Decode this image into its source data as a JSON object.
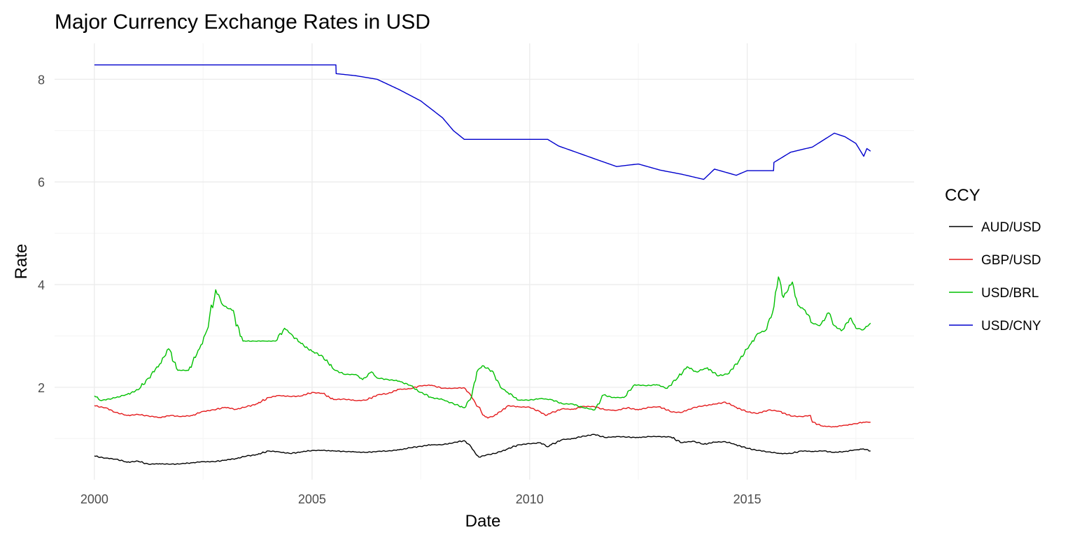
{
  "chart_data": {
    "type": "line",
    "title": "Major Currency Exchange Rates in USD",
    "xlabel": "Date",
    "ylabel": "Rate",
    "x_type": "date",
    "xlim": [
      "1999-02-01",
      "2018-11-01"
    ],
    "ylim": [
      0.2,
      8.7
    ],
    "x_ticks": [
      {
        "date": "2000-01-01",
        "label": "2000"
      },
      {
        "date": "2005-01-01",
        "label": "2005"
      },
      {
        "date": "2010-01-01",
        "label": "2010"
      },
      {
        "date": "2015-01-01",
        "label": "2015"
      }
    ],
    "x_minor_ticks": [
      "2002-07-01",
      "2007-07-01",
      "2012-07-01",
      "2017-07-01"
    ],
    "y_ticks": [
      2,
      4,
      6,
      8
    ],
    "y_minor_ticks": [
      1,
      3,
      5,
      7
    ],
    "grid": true,
    "legend": {
      "title": "CCY",
      "position": "right",
      "entries": [
        "AUD/USD",
        "GBP/USD",
        "USD/BRL",
        "USD/CNY"
      ]
    },
    "series": [
      {
        "name": "AUD/USD",
        "color": "#000000",
        "points": [
          [
            "2000-01-01",
            0.66
          ],
          [
            "2000-04-01",
            0.62
          ],
          [
            "2000-07-01",
            0.6
          ],
          [
            "2000-10-01",
            0.54
          ],
          [
            "2001-01-01",
            0.56
          ],
          [
            "2001-04-01",
            0.5
          ],
          [
            "2001-07-01",
            0.51
          ],
          [
            "2001-10-01",
            0.5
          ],
          [
            "2002-01-01",
            0.51
          ],
          [
            "2002-04-01",
            0.53
          ],
          [
            "2002-07-01",
            0.55
          ],
          [
            "2002-10-01",
            0.55
          ],
          [
            "2003-01-01",
            0.58
          ],
          [
            "2003-04-01",
            0.61
          ],
          [
            "2003-07-01",
            0.66
          ],
          [
            "2003-10-01",
            0.69
          ],
          [
            "2004-01-01",
            0.76
          ],
          [
            "2004-04-01",
            0.74
          ],
          [
            "2004-07-01",
            0.71
          ],
          [
            "2004-10-01",
            0.74
          ],
          [
            "2005-01-01",
            0.77
          ],
          [
            "2005-04-01",
            0.77
          ],
          [
            "2005-07-01",
            0.76
          ],
          [
            "2005-10-01",
            0.75
          ],
          [
            "2006-01-01",
            0.74
          ],
          [
            "2006-04-01",
            0.73
          ],
          [
            "2006-07-01",
            0.75
          ],
          [
            "2006-10-01",
            0.76
          ],
          [
            "2007-01-01",
            0.78
          ],
          [
            "2007-04-01",
            0.82
          ],
          [
            "2007-07-01",
            0.85
          ],
          [
            "2007-10-01",
            0.88
          ],
          [
            "2008-01-01",
            0.88
          ],
          [
            "2008-04-01",
            0.92
          ],
          [
            "2008-07-01",
            0.96
          ],
          [
            "2008-08-15",
            0.88
          ],
          [
            "2008-10-01",
            0.72
          ],
          [
            "2008-11-01",
            0.64
          ],
          [
            "2009-01-01",
            0.68
          ],
          [
            "2009-04-01",
            0.72
          ],
          [
            "2009-07-01",
            0.8
          ],
          [
            "2009-10-01",
            0.88
          ],
          [
            "2010-01-01",
            0.9
          ],
          [
            "2010-04-01",
            0.92
          ],
          [
            "2010-06-01",
            0.84
          ],
          [
            "2010-07-01",
            0.88
          ],
          [
            "2010-10-01",
            0.98
          ],
          [
            "2011-01-01",
            1.0
          ],
          [
            "2011-04-01",
            1.05
          ],
          [
            "2011-07-01",
            1.08
          ],
          [
            "2011-10-01",
            1.02
          ],
          [
            "2012-01-01",
            1.04
          ],
          [
            "2012-04-01",
            1.03
          ],
          [
            "2012-07-01",
            1.02
          ],
          [
            "2012-10-01",
            1.04
          ],
          [
            "2013-01-01",
            1.04
          ],
          [
            "2013-04-01",
            1.03
          ],
          [
            "2013-07-01",
            0.92
          ],
          [
            "2013-10-01",
            0.95
          ],
          [
            "2014-01-01",
            0.89
          ],
          [
            "2014-04-01",
            0.93
          ],
          [
            "2014-07-01",
            0.94
          ],
          [
            "2014-10-01",
            0.88
          ],
          [
            "2015-01-01",
            0.81
          ],
          [
            "2015-04-01",
            0.77
          ],
          [
            "2015-07-01",
            0.74
          ],
          [
            "2015-10-01",
            0.71
          ],
          [
            "2016-01-01",
            0.71
          ],
          [
            "2016-04-01",
            0.76
          ],
          [
            "2016-07-01",
            0.75
          ],
          [
            "2016-10-01",
            0.76
          ],
          [
            "2017-01-01",
            0.73
          ],
          [
            "2017-04-01",
            0.75
          ],
          [
            "2017-07-01",
            0.78
          ],
          [
            "2017-09-01",
            0.8
          ],
          [
            "2017-11-01",
            0.76
          ]
        ]
      },
      {
        "name": "GBP/USD",
        "color": "#e41a1c",
        "points": [
          [
            "2000-01-01",
            1.64
          ],
          [
            "2000-04-01",
            1.6
          ],
          [
            "2000-07-01",
            1.51
          ],
          [
            "2000-10-01",
            1.45
          ],
          [
            "2001-01-01",
            1.47
          ],
          [
            "2001-04-01",
            1.44
          ],
          [
            "2001-07-01",
            1.41
          ],
          [
            "2001-10-01",
            1.45
          ],
          [
            "2002-01-01",
            1.43
          ],
          [
            "2002-04-01",
            1.45
          ],
          [
            "2002-07-01",
            1.53
          ],
          [
            "2002-10-01",
            1.56
          ],
          [
            "2003-01-01",
            1.61
          ],
          [
            "2003-04-01",
            1.57
          ],
          [
            "2003-07-01",
            1.62
          ],
          [
            "2003-10-01",
            1.68
          ],
          [
            "2004-01-01",
            1.8
          ],
          [
            "2004-04-01",
            1.84
          ],
          [
            "2004-07-01",
            1.82
          ],
          [
            "2004-10-01",
            1.83
          ],
          [
            "2005-01-01",
            1.9
          ],
          [
            "2005-04-01",
            1.88
          ],
          [
            "2005-07-01",
            1.76
          ],
          [
            "2005-10-01",
            1.77
          ],
          [
            "2006-01-01",
            1.74
          ],
          [
            "2006-04-01",
            1.75
          ],
          [
            "2006-07-01",
            1.85
          ],
          [
            "2006-10-01",
            1.88
          ],
          [
            "2007-01-01",
            1.96
          ],
          [
            "2007-04-01",
            1.97
          ],
          [
            "2007-07-01",
            2.03
          ],
          [
            "2007-10-01",
            2.04
          ],
          [
            "2008-01-01",
            1.98
          ],
          [
            "2008-04-01",
            1.98
          ],
          [
            "2008-07-01",
            1.99
          ],
          [
            "2008-08-15",
            1.88
          ],
          [
            "2008-10-01",
            1.7
          ],
          [
            "2008-12-15",
            1.45
          ],
          [
            "2009-01-15",
            1.4
          ],
          [
            "2009-04-01",
            1.47
          ],
          [
            "2009-07-01",
            1.64
          ],
          [
            "2009-10-01",
            1.62
          ],
          [
            "2010-01-01",
            1.61
          ],
          [
            "2010-04-01",
            1.52
          ],
          [
            "2010-05-15",
            1.45
          ],
          [
            "2010-07-01",
            1.5
          ],
          [
            "2010-10-01",
            1.58
          ],
          [
            "2011-01-01",
            1.57
          ],
          [
            "2011-04-01",
            1.63
          ],
          [
            "2011-07-01",
            1.62
          ],
          [
            "2011-10-01",
            1.56
          ],
          [
            "2012-01-01",
            1.55
          ],
          [
            "2012-04-01",
            1.6
          ],
          [
            "2012-07-01",
            1.56
          ],
          [
            "2012-10-01",
            1.61
          ],
          [
            "2013-01-01",
            1.62
          ],
          [
            "2013-04-01",
            1.52
          ],
          [
            "2013-07-01",
            1.51
          ],
          [
            "2013-10-01",
            1.6
          ],
          [
            "2014-01-01",
            1.64
          ],
          [
            "2014-04-01",
            1.67
          ],
          [
            "2014-07-01",
            1.71
          ],
          [
            "2014-10-01",
            1.61
          ],
          [
            "2015-01-01",
            1.52
          ],
          [
            "2015-04-01",
            1.49
          ],
          [
            "2015-07-01",
            1.56
          ],
          [
            "2015-10-01",
            1.53
          ],
          [
            "2016-01-01",
            1.44
          ],
          [
            "2016-04-01",
            1.43
          ],
          [
            "2016-06-15",
            1.45
          ],
          [
            "2016-07-01",
            1.32
          ],
          [
            "2016-10-01",
            1.24
          ],
          [
            "2017-01-01",
            1.23
          ],
          [
            "2017-04-01",
            1.26
          ],
          [
            "2017-07-01",
            1.29
          ],
          [
            "2017-09-01",
            1.32
          ],
          [
            "2017-11-01",
            1.32
          ]
        ]
      },
      {
        "name": "USD/BRL",
        "color": "#00c000",
        "points": [
          [
            "2000-01-01",
            1.83
          ],
          [
            "2000-03-01",
            1.74
          ],
          [
            "2000-07-01",
            1.8
          ],
          [
            "2000-10-01",
            1.86
          ],
          [
            "2001-01-01",
            1.95
          ],
          [
            "2001-04-01",
            2.18
          ],
          [
            "2001-07-01",
            2.45
          ],
          [
            "2001-09-15",
            2.75
          ],
          [
            "2001-12-01",
            2.33
          ],
          [
            "2002-03-01",
            2.33
          ],
          [
            "2002-06-01",
            2.75
          ],
          [
            "2002-08-01",
            3.1
          ],
          [
            "2002-10-15",
            3.9
          ],
          [
            "2002-12-15",
            3.6
          ],
          [
            "2003-03-01",
            3.5
          ],
          [
            "2003-06-01",
            2.9
          ],
          [
            "2003-09-01",
            2.9
          ],
          [
            "2003-12-01",
            2.9
          ],
          [
            "2004-03-01",
            2.9
          ],
          [
            "2004-05-15",
            3.15
          ],
          [
            "2004-07-01",
            3.05
          ],
          [
            "2004-10-01",
            2.85
          ],
          [
            "2005-01-01",
            2.7
          ],
          [
            "2005-04-01",
            2.6
          ],
          [
            "2005-07-01",
            2.35
          ],
          [
            "2005-10-01",
            2.25
          ],
          [
            "2006-01-01",
            2.25
          ],
          [
            "2006-03-01",
            2.15
          ],
          [
            "2006-05-15",
            2.3
          ],
          [
            "2006-07-01",
            2.18
          ],
          [
            "2006-10-01",
            2.15
          ],
          [
            "2007-01-01",
            2.12
          ],
          [
            "2007-04-01",
            2.04
          ],
          [
            "2007-07-01",
            1.9
          ],
          [
            "2007-10-01",
            1.8
          ],
          [
            "2008-01-01",
            1.76
          ],
          [
            "2008-04-01",
            1.68
          ],
          [
            "2008-07-01",
            1.6
          ],
          [
            "2008-09-01",
            1.82
          ],
          [
            "2008-10-15",
            2.3
          ],
          [
            "2008-12-01",
            2.42
          ],
          [
            "2009-03-01",
            2.3
          ],
          [
            "2009-05-01",
            2.0
          ],
          [
            "2009-07-01",
            1.9
          ],
          [
            "2009-10-01",
            1.75
          ],
          [
            "2010-01-01",
            1.75
          ],
          [
            "2010-04-01",
            1.78
          ],
          [
            "2010-07-01",
            1.76
          ],
          [
            "2010-10-01",
            1.68
          ],
          [
            "2011-01-01",
            1.67
          ],
          [
            "2011-04-01",
            1.6
          ],
          [
            "2011-07-01",
            1.56
          ],
          [
            "2011-09-15",
            1.85
          ],
          [
            "2011-12-01",
            1.8
          ],
          [
            "2012-03-01",
            1.8
          ],
          [
            "2012-06-01",
            2.05
          ],
          [
            "2012-09-01",
            2.03
          ],
          [
            "2012-12-01",
            2.05
          ],
          [
            "2013-03-01",
            1.98
          ],
          [
            "2013-06-01",
            2.2
          ],
          [
            "2013-08-15",
            2.4
          ],
          [
            "2013-11-01",
            2.3
          ],
          [
            "2014-02-01",
            2.38
          ],
          [
            "2014-05-01",
            2.22
          ],
          [
            "2014-08-01",
            2.27
          ],
          [
            "2014-11-01",
            2.55
          ],
          [
            "2015-02-01",
            2.85
          ],
          [
            "2015-04-01",
            3.05
          ],
          [
            "2015-06-01",
            3.1
          ],
          [
            "2015-08-01",
            3.45
          ],
          [
            "2015-09-20",
            4.15
          ],
          [
            "2015-11-01",
            3.75
          ],
          [
            "2016-01-15",
            4.05
          ],
          [
            "2016-03-01",
            3.6
          ],
          [
            "2016-05-01",
            3.5
          ],
          [
            "2016-07-01",
            3.25
          ],
          [
            "2016-09-01",
            3.2
          ],
          [
            "2016-11-15",
            3.45
          ],
          [
            "2017-01-01",
            3.2
          ],
          [
            "2017-03-01",
            3.1
          ],
          [
            "2017-05-20",
            3.35
          ],
          [
            "2017-07-01",
            3.15
          ],
          [
            "2017-09-01",
            3.12
          ],
          [
            "2017-11-01",
            3.25
          ]
        ]
      },
      {
        "name": "USD/CNY",
        "color": "#0000cd",
        "points": [
          [
            "2000-01-01",
            8.28
          ],
          [
            "2002-01-01",
            8.28
          ],
          [
            "2004-01-01",
            8.28
          ],
          [
            "2005-07-20",
            8.28
          ],
          [
            "2005-07-22",
            8.11
          ],
          [
            "2006-01-01",
            8.07
          ],
          [
            "2006-07-01",
            8.0
          ],
          [
            "2007-01-01",
            7.8
          ],
          [
            "2007-07-01",
            7.58
          ],
          [
            "2008-01-01",
            7.25
          ],
          [
            "2008-04-01",
            7.0
          ],
          [
            "2008-07-01",
            6.83
          ],
          [
            "2008-10-01",
            6.83
          ],
          [
            "2009-06-01",
            6.83
          ],
          [
            "2010-06-01",
            6.83
          ],
          [
            "2010-09-01",
            6.7
          ],
          [
            "2011-01-01",
            6.6
          ],
          [
            "2011-07-01",
            6.45
          ],
          [
            "2012-01-01",
            6.3
          ],
          [
            "2012-07-01",
            6.35
          ],
          [
            "2013-01-01",
            6.23
          ],
          [
            "2013-07-01",
            6.15
          ],
          [
            "2014-01-01",
            6.05
          ],
          [
            "2014-04-01",
            6.25
          ],
          [
            "2014-10-01",
            6.13
          ],
          [
            "2015-01-01",
            6.22
          ],
          [
            "2015-08-10",
            6.22
          ],
          [
            "2015-08-13",
            6.38
          ],
          [
            "2016-01-01",
            6.58
          ],
          [
            "2016-07-01",
            6.68
          ],
          [
            "2017-01-01",
            6.95
          ],
          [
            "2017-04-01",
            6.88
          ],
          [
            "2017-07-01",
            6.75
          ],
          [
            "2017-09-05",
            6.5
          ],
          [
            "2017-10-01",
            6.65
          ],
          [
            "2017-11-01",
            6.6
          ]
        ]
      }
    ]
  }
}
